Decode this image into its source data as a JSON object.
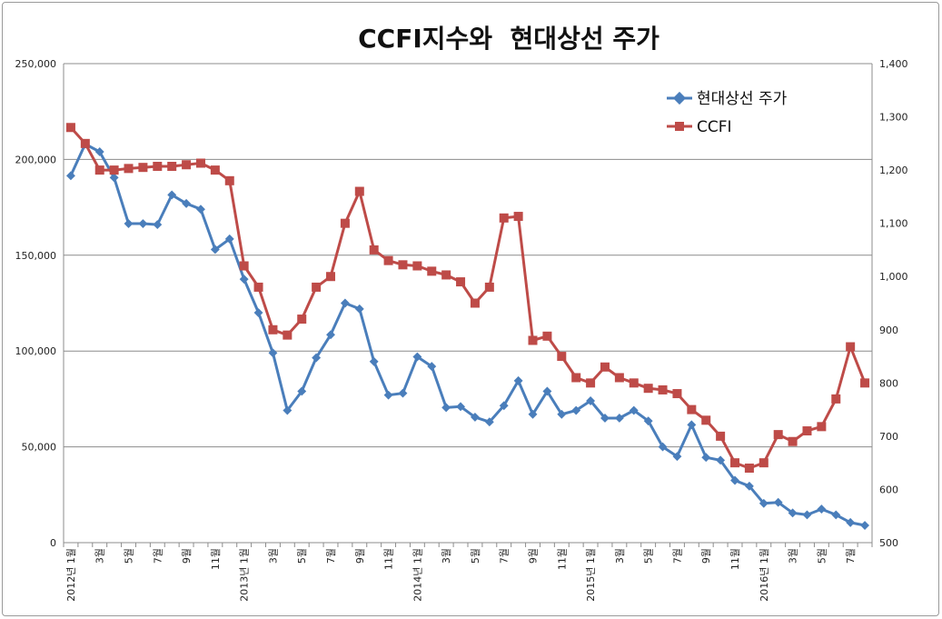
{
  "chart_data": {
    "type": "line",
    "title": "CCFI지수와  현대상선 주가",
    "x": [
      "2012년 1월",
      "2월",
      "3월",
      "4월",
      "5월",
      "6월",
      "7월",
      "8월",
      "9월",
      "10월",
      "11월",
      "12월",
      "2013년 1월",
      "2월",
      "3월",
      "4월",
      "5월",
      "6월",
      "7월",
      "8월",
      "9월",
      "10월",
      "11월",
      "12월",
      "2014년 1월",
      "2월",
      "3월",
      "4월",
      "5월",
      "6월",
      "7월",
      "8월",
      "9월",
      "10월",
      "11월",
      "12월",
      "2015년 1월",
      "2월",
      "3월",
      "4월",
      "5월",
      "6월",
      "7월",
      "8월",
      "9월",
      "10월",
      "11월",
      "12월",
      "2016년 1월",
      "2월",
      "3월",
      "4월",
      "5월",
      "6월",
      "7월",
      "8월"
    ],
    "x_tick_labels": [
      {
        "i": 0,
        "text": "2012년 1월"
      },
      {
        "i": 2,
        "text": "3월"
      },
      {
        "i": 4,
        "text": "5월"
      },
      {
        "i": 6,
        "text": "7월"
      },
      {
        "i": 8,
        "text": "9월"
      },
      {
        "i": 10,
        "text": "11월"
      },
      {
        "i": 12,
        "text": "2013년 1월"
      },
      {
        "i": 14,
        "text": "3월"
      },
      {
        "i": 16,
        "text": "5월"
      },
      {
        "i": 18,
        "text": "7월"
      },
      {
        "i": 20,
        "text": "9월"
      },
      {
        "i": 22,
        "text": "11월"
      },
      {
        "i": 24,
        "text": "2014년 1월"
      },
      {
        "i": 26,
        "text": "3월"
      },
      {
        "i": 28,
        "text": "5월"
      },
      {
        "i": 30,
        "text": "7월"
      },
      {
        "i": 32,
        "text": "9월"
      },
      {
        "i": 34,
        "text": "11월"
      },
      {
        "i": 36,
        "text": "2015년 1월"
      },
      {
        "i": 38,
        "text": "3월"
      },
      {
        "i": 40,
        "text": "5월"
      },
      {
        "i": 42,
        "text": "7월"
      },
      {
        "i": 44,
        "text": "9월"
      },
      {
        "i": 46,
        "text": "11월"
      },
      {
        "i": 48,
        "text": "2016년 1월"
      },
      {
        "i": 50,
        "text": "3월"
      },
      {
        "i": 52,
        "text": "5월"
      },
      {
        "i": 54,
        "text": "7월"
      }
    ],
    "y_left": {
      "min": 0,
      "max": 250000,
      "ticks": [
        "0",
        "50,000",
        "100,000",
        "150,000",
        "200,000",
        "250,000"
      ]
    },
    "y_right": {
      "min": 500,
      "max": 1400,
      "ticks": [
        "500",
        "600",
        "700",
        "800",
        "900",
        "1,000",
        "1,100",
        "1,200",
        "1,300",
        "1,400"
      ]
    },
    "gridlines": true,
    "legend_position": "top-right",
    "series": [
      {
        "name": "현대상선 주가",
        "axis": "left",
        "color": "#4a7ebb",
        "marker": "diamond",
        "values": [
          191500,
          208000,
          204000,
          190500,
          166500,
          166500,
          166000,
          181500,
          177000,
          174000,
          153000,
          158500,
          137500,
          120000,
          99000,
          69000,
          79000,
          96500,
          108500,
          125000,
          122000,
          94500,
          77000,
          78000,
          97000,
          92000,
          70500,
          71000,
          65500,
          63000,
          71500,
          84500,
          67000,
          79000,
          67000,
          69000,
          74000,
          65000,
          65000,
          69000,
          63500,
          50000,
          45000,
          61500,
          44500,
          43000,
          32500,
          29500,
          20500,
          21000,
          15500,
          14500,
          17500,
          14500,
          10500,
          9000
        ]
      },
      {
        "name": "CCFI",
        "axis": "right",
        "color": "#be4b48",
        "marker": "square",
        "values": [
          1280,
          1250,
          1200,
          1200,
          1203,
          1205,
          1207,
          1207,
          1210,
          1213,
          1200,
          1180,
          1020,
          980,
          900,
          890,
          920,
          980,
          1000,
          1100,
          1160,
          1050,
          1030,
          1022,
          1020,
          1010,
          1003,
          990,
          950,
          980,
          1110,
          1113,
          880,
          888,
          850,
          810,
          800,
          830,
          810,
          800,
          790,
          787,
          780,
          750,
          730,
          700,
          650,
          640,
          650,
          703,
          690,
          710,
          718,
          770,
          868,
          800
        ]
      }
    ]
  }
}
